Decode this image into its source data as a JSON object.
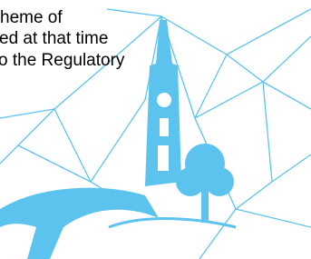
{
  "body": {
    "lines": [
      "heme of",
      "ed at that time",
      "o the Regulatory"
    ]
  }
}
